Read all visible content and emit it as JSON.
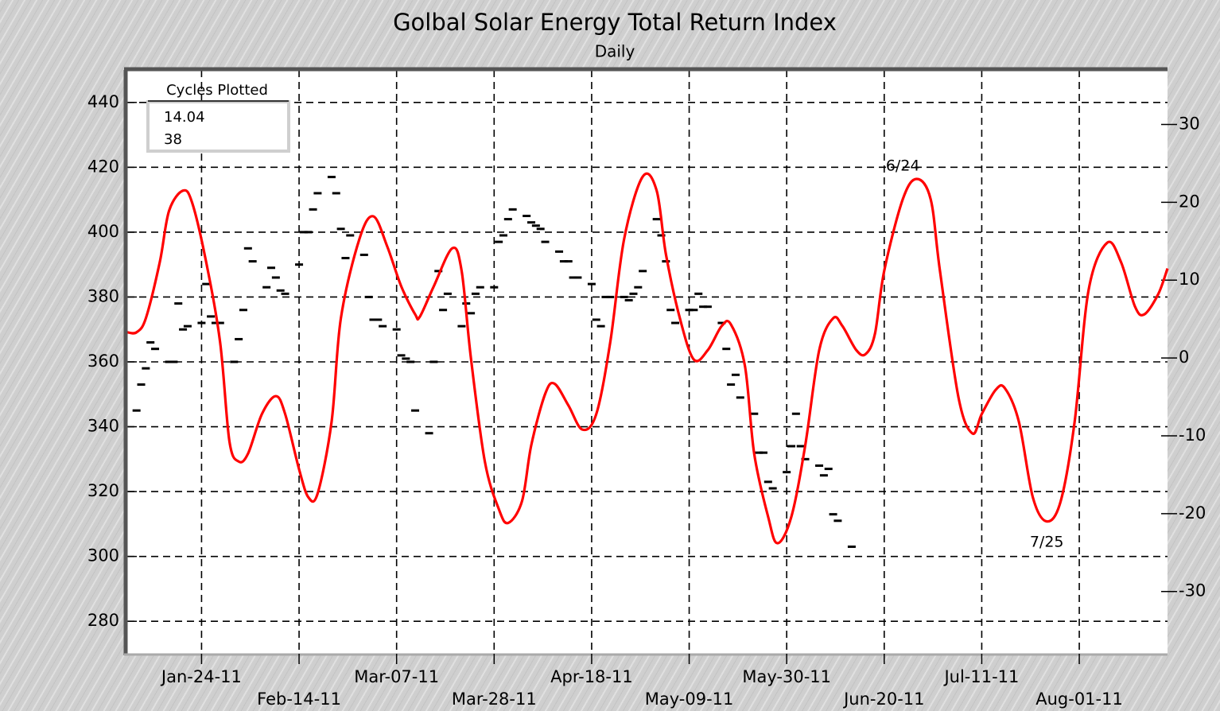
{
  "chart_data": {
    "type": "line",
    "title": "Golbal Solar Energy Total Return Index",
    "subtitle": "Daily",
    "xlim": [
      "2011-01-08",
      "2011-08-20"
    ],
    "xticks": [
      {
        "value": "2011-01-24",
        "label": "Jan-24-11"
      },
      {
        "value": "2011-02-14",
        "label": "Feb-14-11"
      },
      {
        "value": "2011-03-07",
        "label": "Mar-07-11"
      },
      {
        "value": "2011-03-28",
        "label": "Mar-28-11"
      },
      {
        "value": "2011-04-18",
        "label": "Apr-18-11"
      },
      {
        "value": "2011-05-09",
        "label": "May-09-11"
      },
      {
        "value": "2011-05-30",
        "label": "May-30-11"
      },
      {
        "value": "2011-06-20",
        "label": "Jun-20-11"
      },
      {
        "value": "2011-07-11",
        "label": "Jul-11-11"
      },
      {
        "value": "2011-08-01",
        "label": "Aug-01-11"
      }
    ],
    "ylim": [
      270,
      450
    ],
    "yticks": [
      280,
      300,
      320,
      340,
      360,
      380,
      400,
      420,
      440
    ],
    "y2lim": [
      -38,
      37
    ],
    "y2ticks": [
      30,
      20,
      10,
      0,
      -10,
      -20,
      -30
    ],
    "grid": true,
    "price": {
      "color": "#000000",
      "x": [
        "2011-01-10",
        "2011-01-11",
        "2011-01-12",
        "2011-01-13",
        "2011-01-14",
        "2011-01-17",
        "2011-01-18",
        "2011-01-19",
        "2011-01-20",
        "2011-01-21",
        "2011-01-24",
        "2011-01-25",
        "2011-01-26",
        "2011-01-27",
        "2011-01-28",
        "2011-01-31",
        "2011-02-01",
        "2011-02-02",
        "2011-02-03",
        "2011-02-04",
        "2011-02-07",
        "2011-02-08",
        "2011-02-09",
        "2011-02-10",
        "2011-02-11",
        "2011-02-14",
        "2011-02-15",
        "2011-02-16",
        "2011-02-17",
        "2011-02-18",
        "2011-02-21",
        "2011-02-22",
        "2011-02-23",
        "2011-02-24",
        "2011-02-25",
        "2011-02-28",
        "2011-03-01",
        "2011-03-02",
        "2011-03-03",
        "2011-03-04",
        "2011-03-07",
        "2011-03-08",
        "2011-03-09",
        "2011-03-10",
        "2011-03-11",
        "2011-03-14",
        "2011-03-15",
        "2011-03-16",
        "2011-03-17",
        "2011-03-18",
        "2011-03-21",
        "2011-03-22",
        "2011-03-23",
        "2011-03-24",
        "2011-03-25",
        "2011-03-28",
        "2011-03-29",
        "2011-03-30",
        "2011-03-31",
        "2011-04-01",
        "2011-04-04",
        "2011-04-05",
        "2011-04-06",
        "2011-04-07",
        "2011-04-08",
        "2011-04-11",
        "2011-04-12",
        "2011-04-13",
        "2011-04-14",
        "2011-04-15",
        "2011-04-18",
        "2011-04-19",
        "2011-04-20",
        "2011-04-21",
        "2011-04-22",
        "2011-04-25",
        "2011-04-26",
        "2011-04-27",
        "2011-04-28",
        "2011-04-29",
        "2011-05-02",
        "2011-05-03",
        "2011-05-04",
        "2011-05-05",
        "2011-05-06",
        "2011-05-09",
        "2011-05-10",
        "2011-05-11",
        "2011-05-12",
        "2011-05-13",
        "2011-05-16",
        "2011-05-17",
        "2011-05-18",
        "2011-05-19",
        "2011-05-20",
        "2011-05-23",
        "2011-05-24",
        "2011-05-25",
        "2011-05-26",
        "2011-05-27",
        "2011-05-30",
        "2011-05-31",
        "2011-06-01",
        "2011-06-02",
        "2011-06-03",
        "2011-06-06",
        "2011-06-07",
        "2011-06-08",
        "2011-06-09",
        "2011-06-10",
        "2011-06-13"
      ],
      "values": [
        345,
        353,
        358,
        366,
        364,
        360,
        360,
        378,
        370,
        371,
        372,
        384,
        374,
        372,
        372,
        360,
        367,
        376,
        395,
        391,
        383,
        389,
        386,
        382,
        381,
        390,
        400,
        400,
        407,
        412,
        417,
        412,
        401,
        392,
        399,
        393,
        380,
        373,
        373,
        371,
        370,
        362,
        361,
        360,
        345,
        338,
        360,
        388,
        376,
        381,
        371,
        378,
        375,
        381,
        383,
        383,
        397,
        399,
        404,
        407,
        405,
        403,
        402,
        401,
        397,
        394,
        391,
        391,
        386,
        386,
        384,
        373,
        371,
        380,
        380,
        380,
        379,
        381,
        383,
        388,
        404,
        399,
        391,
        376,
        372,
        376,
        376,
        381,
        377,
        377,
        372,
        364,
        353,
        356,
        349,
        344,
        332,
        332,
        323,
        321,
        326,
        334,
        344,
        334,
        330,
        328,
        325,
        327,
        313,
        311,
        303
      ]
    },
    "series": [
      {
        "name": "14.04",
        "color": "#ff0000",
        "axis": "y2",
        "x": [
          "2011-01-08",
          "2011-01-10",
          "2011-01-12",
          "2011-01-15",
          "2011-01-17",
          "2011-01-20",
          "2011-01-22",
          "2011-01-25",
          "2011-01-28",
          "2011-01-30",
          "2011-02-01",
          "2011-02-03",
          "2011-02-06",
          "2011-02-09",
          "2011-02-11",
          "2011-02-14",
          "2011-02-16",
          "2011-02-18",
          "2011-02-21",
          "2011-02-23",
          "2011-02-27",
          "2011-03-02",
          "2011-03-05",
          "2011-03-08",
          "2011-03-11",
          "2011-03-12",
          "2011-03-15",
          "2011-03-19",
          "2011-03-21",
          "2011-03-23",
          "2011-03-26",
          "2011-03-29",
          "2011-03-31",
          "2011-04-03",
          "2011-04-05",
          "2011-04-08",
          "2011-04-10",
          "2011-04-13",
          "2011-04-16",
          "2011-04-19",
          "2011-04-22",
          "2011-04-25",
          "2011-04-29",
          "2011-05-02",
          "2011-05-04",
          "2011-05-07",
          "2011-05-10",
          "2011-05-13",
          "2011-05-16",
          "2011-05-18",
          "2011-05-21",
          "2011-05-23",
          "2011-05-26",
          "2011-05-28",
          "2011-05-31",
          "2011-06-03",
          "2011-06-06",
          "2011-06-09",
          "2011-06-11",
          "2011-06-14",
          "2011-06-16",
          "2011-06-18",
          "2011-06-20",
          "2011-06-24",
          "2011-06-27",
          "2011-06-30",
          "2011-07-02",
          "2011-07-06",
          "2011-07-09",
          "2011-07-11",
          "2011-07-14",
          "2011-07-16",
          "2011-07-19",
          "2011-07-22",
          "2011-07-25",
          "2011-07-28",
          "2011-07-31",
          "2011-08-03",
          "2011-08-07",
          "2011-08-10",
          "2011-08-13",
          "2011-08-15",
          "2011-08-18",
          "2011-08-20"
        ],
        "values": [
          3.3,
          3.3,
          5.1,
          12.3,
          18.9,
          21.5,
          19.9,
          12.3,
          2,
          -10.7,
          -13.3,
          -12.3,
          -7.2,
          -4.9,
          -7.2,
          -14.3,
          -17.9,
          -17.4,
          -8.2,
          5.1,
          15.3,
          18.2,
          14.3,
          9.2,
          5.6,
          5.3,
          9.2,
          14.1,
          11.2,
          0,
          -13.3,
          -19.4,
          -21.2,
          -18.4,
          -11.2,
          -4.6,
          -3.3,
          -6.1,
          -9.2,
          -7.2,
          2,
          15.3,
          23.3,
          21.5,
          13.3,
          5.1,
          -0.2,
          1,
          4.1,
          4.3,
          -1,
          -12.3,
          -20.4,
          -23.8,
          -20.4,
          -11.2,
          1,
          5.1,
          4.1,
          1,
          0.5,
          3.1,
          11.2,
          20.4,
          23,
          20.4,
          11.2,
          -5.1,
          -9.7,
          -7.2,
          -4.1,
          -3.9,
          -8.2,
          -17.9,
          -21,
          -18.4,
          -8.2,
          8.7,
          14.8,
          12.3,
          6.6,
          5.6,
          8.2,
          11.5
        ]
      }
    ],
    "cycle_markers": {
      "name": "38",
      "color": "#0000ff",
      "labels": [
        {
          "text": "6/24",
          "x": "2011-06-24",
          "position": "high"
        },
        {
          "text": "7/25",
          "x": "2011-07-25",
          "position": "low"
        }
      ]
    },
    "legend": {
      "title": "Cycles Plotted",
      "corner": "top-left"
    }
  }
}
